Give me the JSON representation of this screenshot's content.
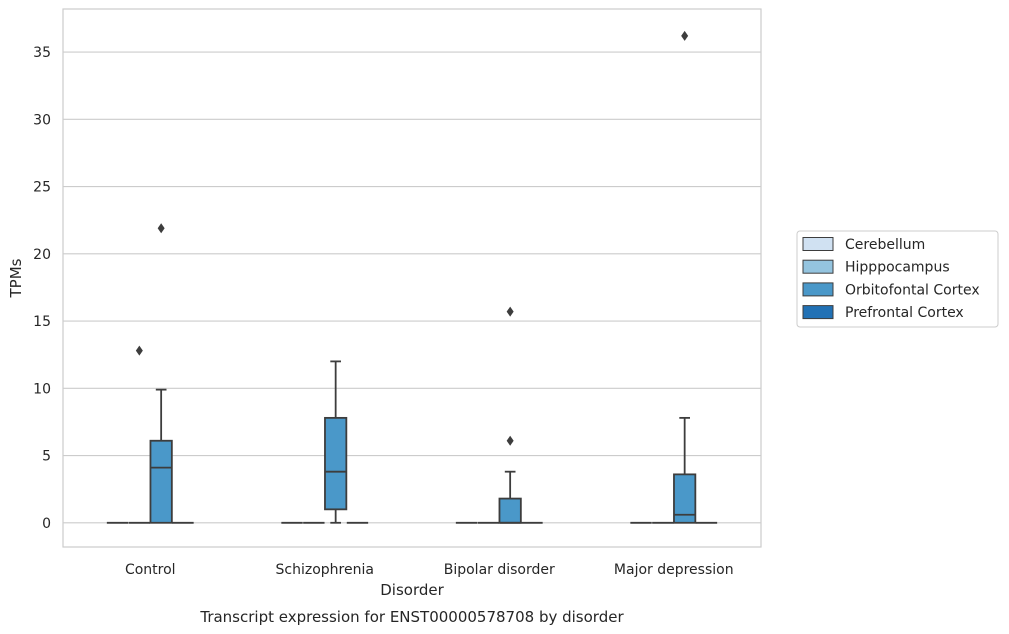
{
  "chart_data": {
    "type": "box",
    "title": "Transcript expression for ENST00000578708 by disorder",
    "xlabel": "Disorder",
    "ylabel": "TPMs",
    "categories": [
      "Control",
      "Schizophrenia",
      "Bipolar disorder",
      "Major depression"
    ],
    "yticks": [
      0,
      5,
      10,
      15,
      20,
      25,
      30,
      35
    ],
    "ylim": [
      -1.8,
      38.2
    ],
    "grid": "horizontal",
    "legend_position": "right",
    "series": [
      {
        "name": "Cerebellum",
        "color": "#d0e1f2",
        "boxes": [
          {
            "category": "Control",
            "whislo": 0,
            "q1": 0,
            "med": 0,
            "q3": 0,
            "whishi": 0,
            "fliers": []
          },
          {
            "category": "Schizophrenia",
            "whislo": 0,
            "q1": 0,
            "med": 0,
            "q3": 0,
            "whishi": 0,
            "fliers": []
          },
          {
            "category": "Bipolar disorder",
            "whislo": 0,
            "q1": 0,
            "med": 0,
            "q3": 0,
            "whishi": 0,
            "fliers": []
          },
          {
            "category": "Major depression",
            "whislo": 0,
            "q1": 0,
            "med": 0,
            "q3": 0,
            "whishi": 0,
            "fliers": []
          }
        ]
      },
      {
        "name": "Hipppocampus",
        "color": "#94c4df",
        "boxes": [
          {
            "category": "Control",
            "whislo": 0,
            "q1": 0,
            "med": 0,
            "q3": 0,
            "whishi": 0,
            "fliers": [
              12.8
            ]
          },
          {
            "category": "Schizophrenia",
            "whislo": 0,
            "q1": 0,
            "med": 0,
            "q3": 0,
            "whishi": 0,
            "fliers": []
          },
          {
            "category": "Bipolar disorder",
            "whislo": 0,
            "q1": 0,
            "med": 0,
            "q3": 0,
            "whishi": 0,
            "fliers": []
          },
          {
            "category": "Major depression",
            "whislo": 0,
            "q1": 0,
            "med": 0,
            "q3": 0,
            "whishi": 0,
            "fliers": []
          }
        ]
      },
      {
        "name": "Orbitofontal Cortex",
        "color": "#4a98c9",
        "boxes": [
          {
            "category": "Control",
            "whislo": 0,
            "q1": 0,
            "med": 4.1,
            "q3": 6.1,
            "whishi": 9.9,
            "fliers": [
              21.9
            ]
          },
          {
            "category": "Schizophrenia",
            "whislo": 0,
            "q1": 1.0,
            "med": 3.8,
            "q3": 7.8,
            "whishi": 12.0,
            "fliers": []
          },
          {
            "category": "Bipolar disorder",
            "whislo": 0,
            "q1": 0,
            "med": 0,
            "q3": 1.8,
            "whishi": 3.8,
            "fliers": [
              6.1,
              15.7
            ]
          },
          {
            "category": "Major depression",
            "whislo": 0,
            "q1": 0,
            "med": 0.6,
            "q3": 3.6,
            "whishi": 7.8,
            "fliers": [
              36.2
            ]
          }
        ]
      },
      {
        "name": "Prefrontal Cortex",
        "color": "#2171b5",
        "boxes": [
          {
            "category": "Control",
            "whislo": 0,
            "q1": 0,
            "med": 0,
            "q3": 0,
            "whishi": 0,
            "fliers": []
          },
          {
            "category": "Schizophrenia",
            "whislo": 0,
            "q1": 0,
            "med": 0,
            "q3": 0,
            "whishi": 0,
            "fliers": []
          },
          {
            "category": "Bipolar disorder",
            "whislo": 0,
            "q1": 0,
            "med": 0,
            "q3": 0,
            "whishi": 0,
            "fliers": []
          },
          {
            "category": "Major depression",
            "whislo": 0,
            "q1": 0,
            "med": 0,
            "q3": 0,
            "whishi": 0,
            "fliers": []
          }
        ]
      }
    ]
  }
}
